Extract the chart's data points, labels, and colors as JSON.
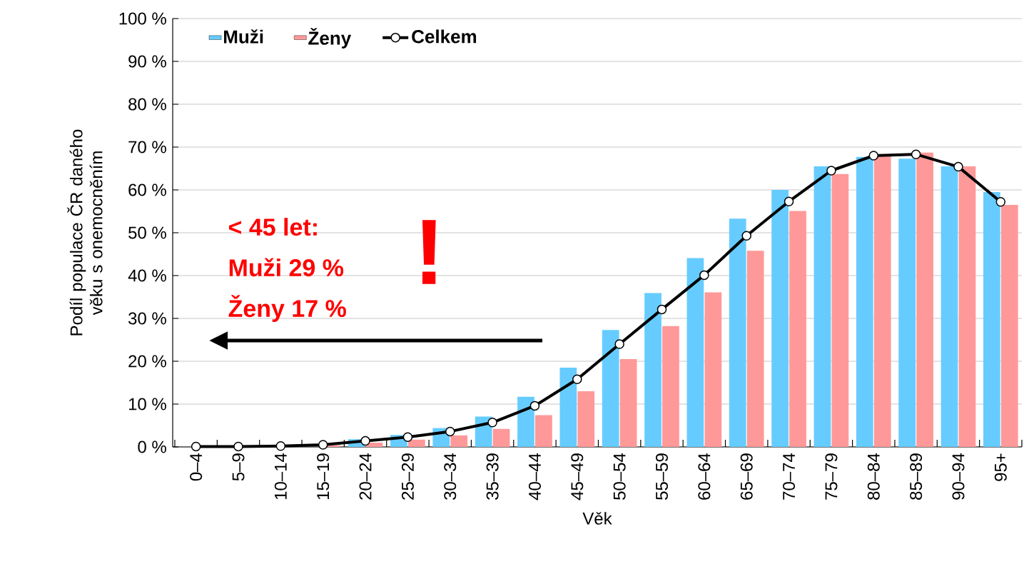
{
  "chart_data": {
    "type": "bar",
    "xlabel": "Věk",
    "ylabel": "Podíl populace ČR daného věku s onemocněním",
    "categories": [
      "0–4",
      "5–9",
      "10–14",
      "15–19",
      "20–24",
      "25–29",
      "30–34",
      "35–39",
      "40–44",
      "45–49",
      "50–54",
      "55–59",
      "60–64",
      "65–69",
      "70–74",
      "75–79",
      "80–84",
      "85–89",
      "90–94",
      "95+"
    ],
    "series": [
      {
        "name": "Muži",
        "color": "#66ccff",
        "values": [
          0,
          null,
          null,
          null,
          1.8,
          2.8,
          4.4,
          7.1,
          11.7,
          18.5,
          27.3,
          35.9,
          44.1,
          53.3,
          60.0,
          65.5,
          67.7,
          67.3,
          65.5,
          59.5
        ]
      },
      {
        "name": "Ženy",
        "color": "#ff9999",
        "values": [
          0,
          0,
          null,
          0.4,
          1.0,
          1.7,
          2.7,
          4.2,
          7.4,
          13.0,
          20.5,
          28.2,
          36.1,
          45.8,
          55.1,
          63.7,
          68.0,
          68.7,
          65.5,
          56.5
        ]
      },
      {
        "name": "Celkem",
        "type": "line",
        "color": "#000000",
        "marker": "circle",
        "values": [
          0.1,
          0.1,
          0.2,
          0.5,
          1.4,
          2.3,
          3.6,
          5.7,
          9.6,
          15.8,
          24.0,
          32.1,
          40.1,
          49.3,
          57.3,
          64.5,
          68.0,
          68.3,
          65.4,
          57.2
        ]
      }
    ],
    "ylim": [
      0,
      100
    ],
    "yticks": [
      {
        "value": 0,
        "label": "0 %"
      },
      {
        "value": 10,
        "label": "10 %"
      },
      {
        "value": 20,
        "label": "20 %"
      },
      {
        "value": 30,
        "label": "30 %"
      },
      {
        "value": 40,
        "label": "40 %"
      },
      {
        "value": 50,
        "label": "50 %"
      },
      {
        "value": 60,
        "label": "60 %"
      },
      {
        "value": 70,
        "label": "70 %"
      },
      {
        "value": 80,
        "label": "80 %"
      },
      {
        "value": 90,
        "label": "90 %"
      },
      {
        "value": 100,
        "label": "100 %"
      }
    ],
    "grid": "y",
    "legend": "top left",
    "annotations": [
      "< 45 let:",
      "Muži 29 %",
      "Ženy 17 %",
      "!"
    ]
  }
}
